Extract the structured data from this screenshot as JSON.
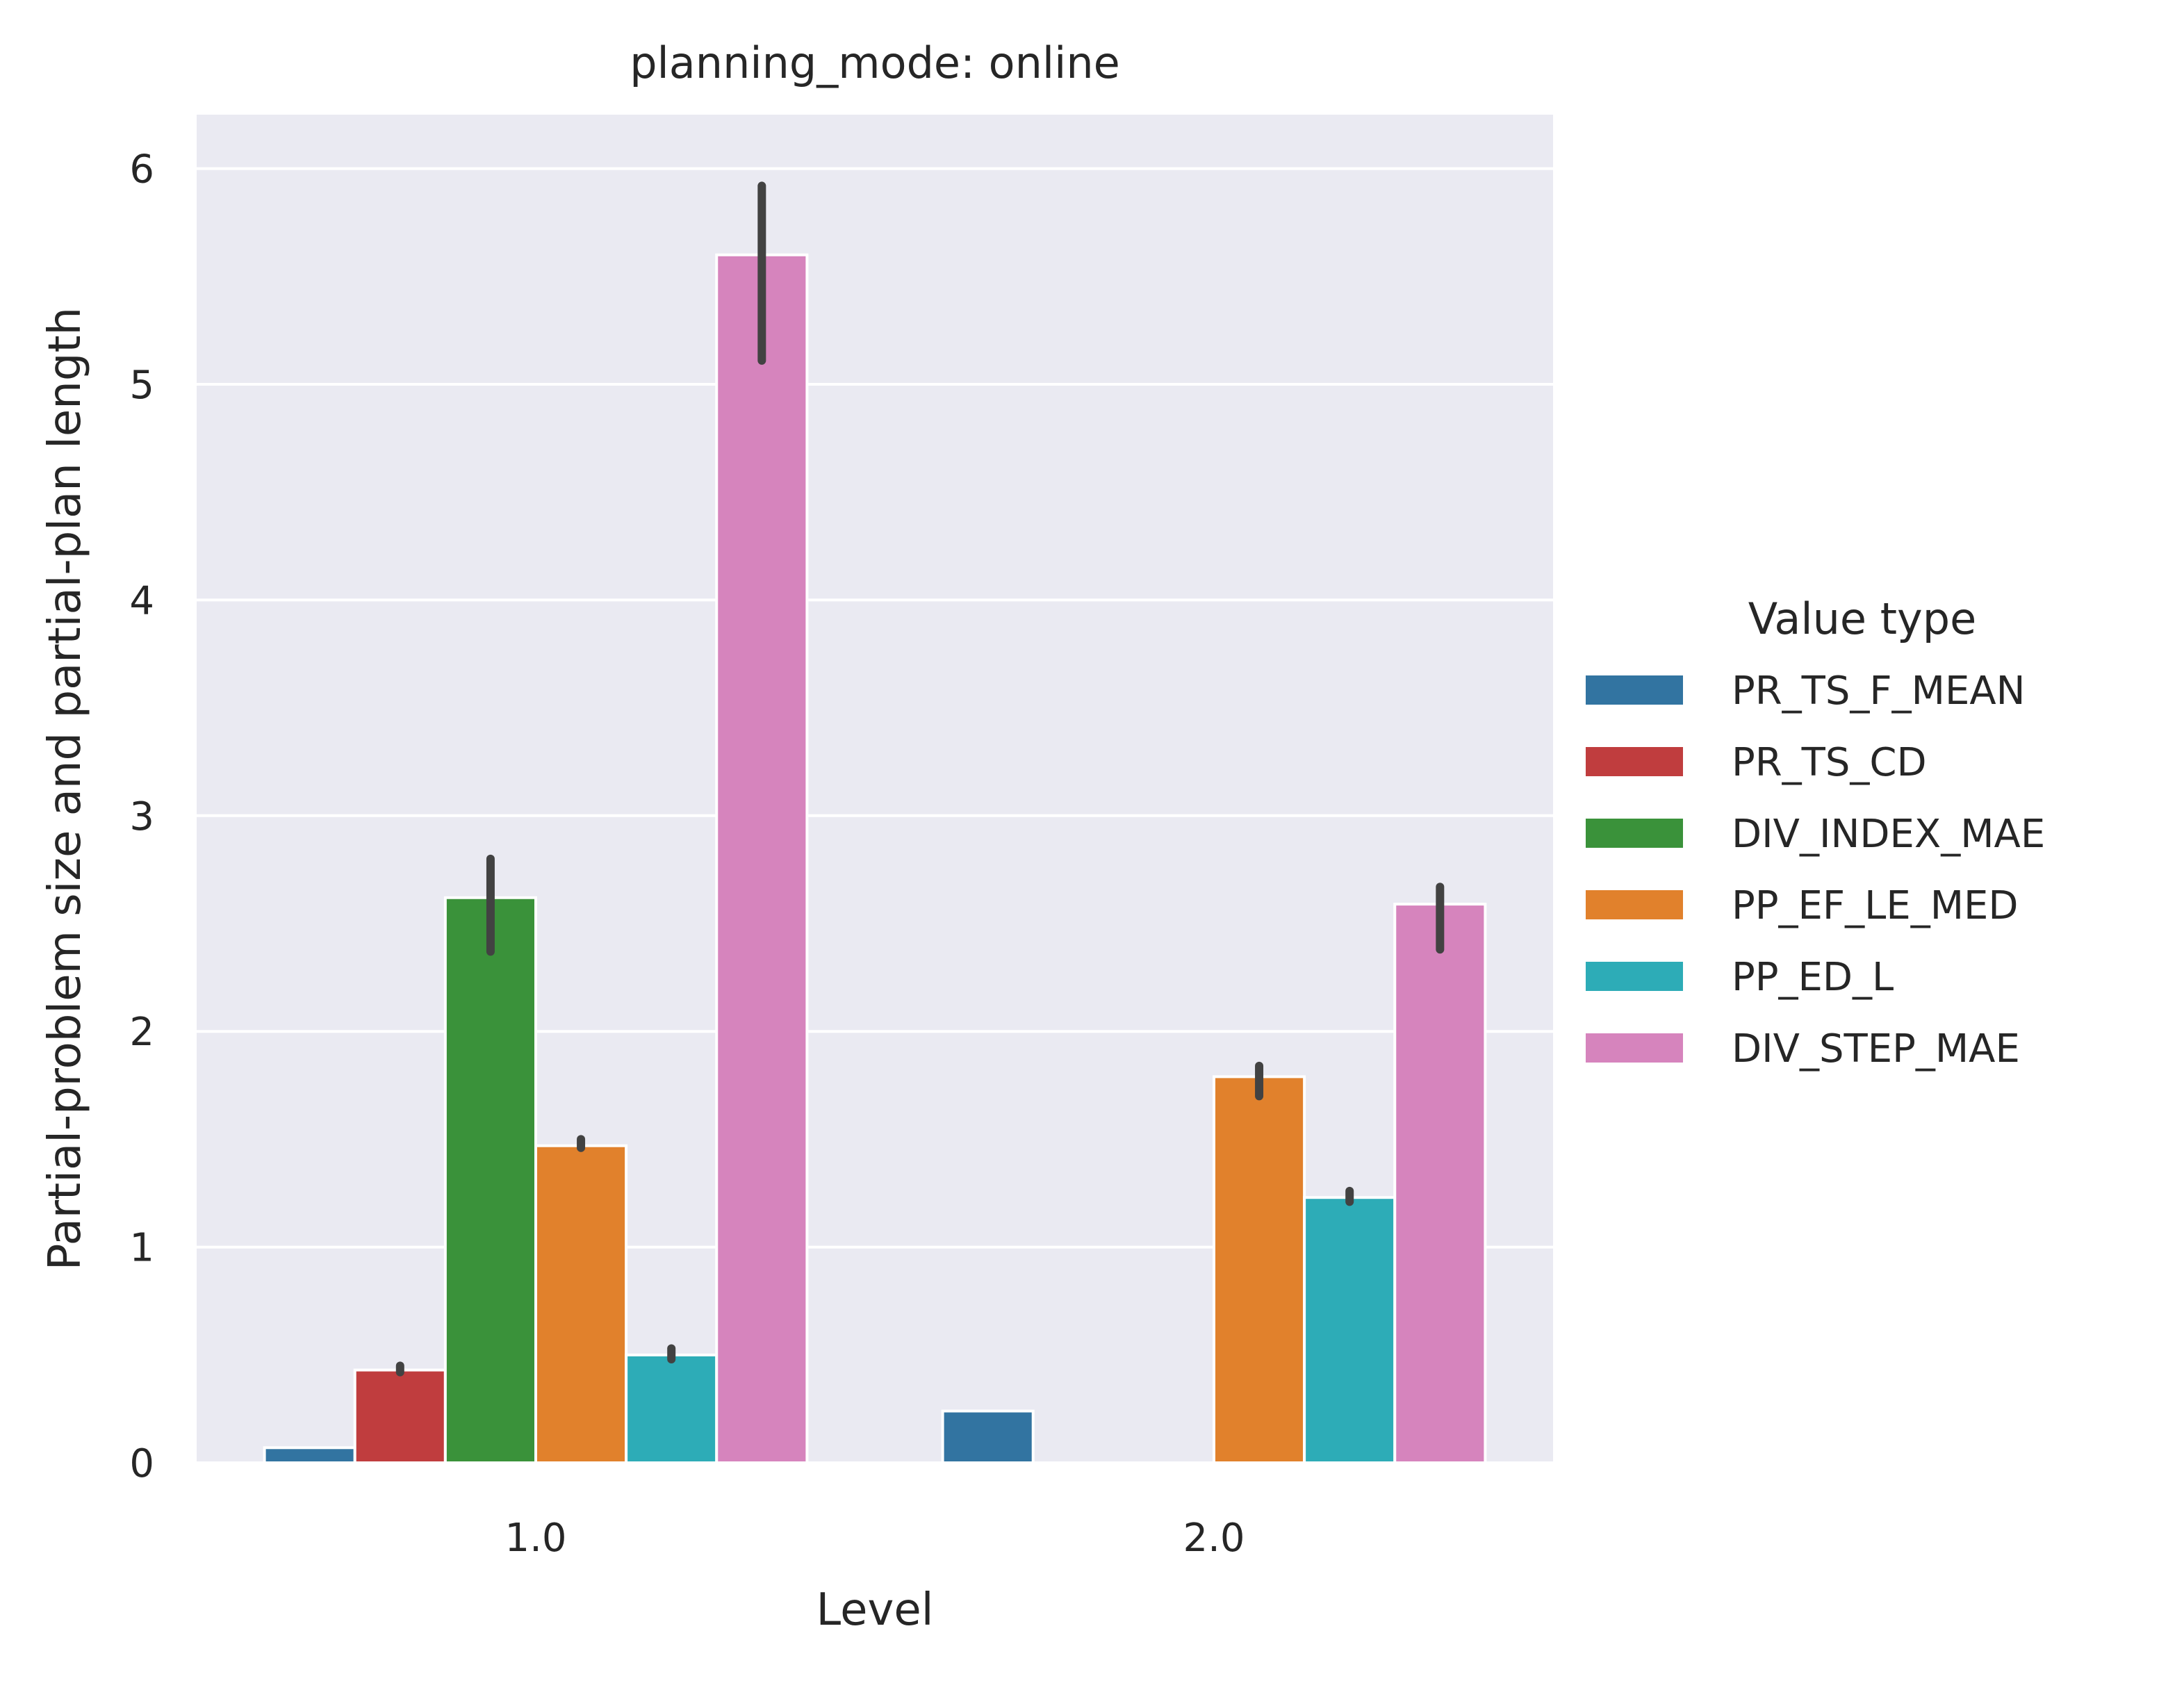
{
  "chart_data": {
    "type": "bar",
    "title": "planning_mode: online",
    "xlabel": "Level",
    "ylabel": "Partial-problem size and partial-plan length",
    "categories": [
      "1.0",
      "2.0"
    ],
    "ylim": [
      0,
      6.25
    ],
    "yticks": [
      "0",
      "1",
      "2",
      "3",
      "4",
      "5",
      "6"
    ],
    "grid": true,
    "legend": {
      "title": "Value type",
      "placement": "right"
    },
    "series": [
      {
        "name": "PR_TS_F_MEAN",
        "color": "#3274a1",
        "values": [
          0.07,
          0.24
        ],
        "err_low": [
          null,
          null
        ],
        "err_high": [
          null,
          null
        ]
      },
      {
        "name": "PR_TS_CD",
        "color": "#c03d3e",
        "values": [
          0.43,
          null
        ],
        "err_low": [
          0.42,
          null
        ],
        "err_high": [
          0.45,
          null
        ]
      },
      {
        "name": "DIV_INDEX_MAE",
        "color": "#3a923a",
        "values": [
          2.62,
          null
        ],
        "err_low": [
          2.37,
          null
        ],
        "err_high": [
          2.8,
          null
        ]
      },
      {
        "name": "PP_EF_LE_MED",
        "color": "#e1812c",
        "values": [
          1.47,
          1.79
        ],
        "err_low": [
          1.46,
          1.7
        ],
        "err_high": [
          1.5,
          1.84
        ]
      },
      {
        "name": "PP_ED_L",
        "color": "#2dacb7",
        "values": [
          0.5,
          1.23
        ],
        "err_low": [
          0.48,
          1.21
        ],
        "err_high": [
          0.53,
          1.26
        ]
      },
      {
        "name": "DIV_STEP_MAE",
        "color": "#d684bd",
        "values": [
          5.6,
          2.59
        ],
        "err_low": [
          5.11,
          2.38
        ],
        "err_high": [
          5.92,
          2.67
        ]
      }
    ]
  }
}
